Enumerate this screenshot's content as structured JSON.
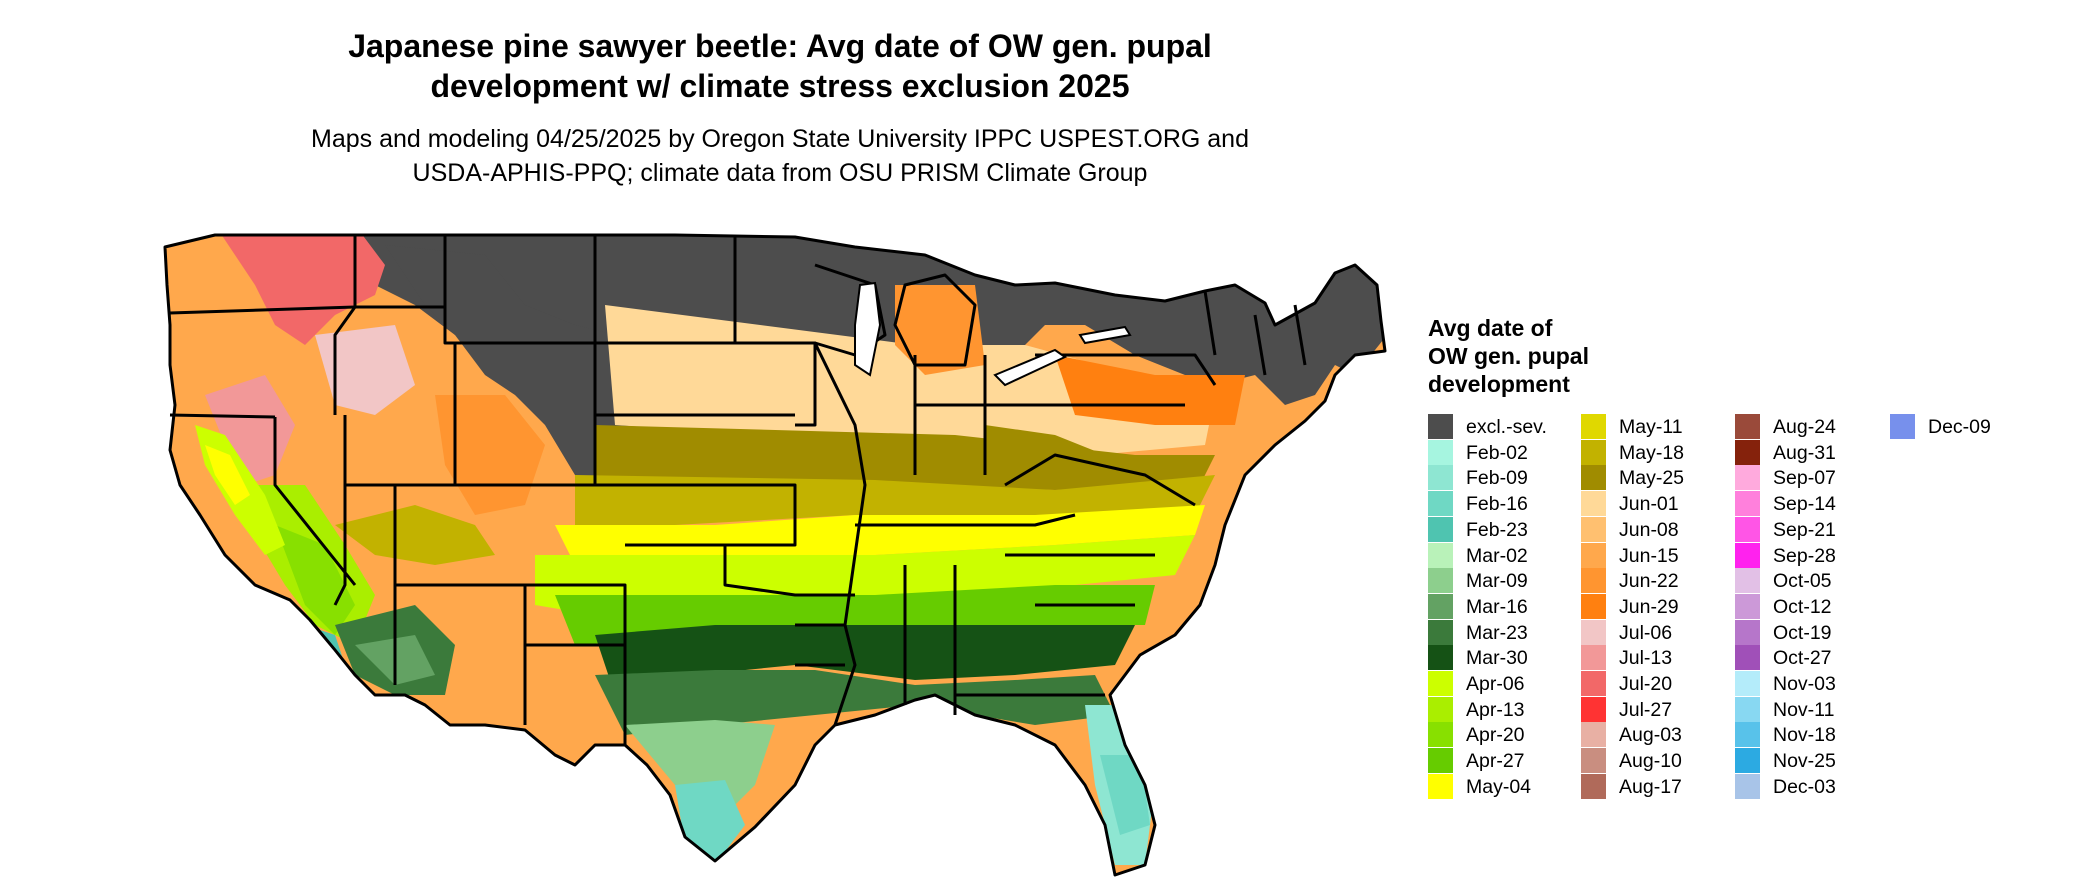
{
  "title": {
    "line1": "Japanese pine sawyer beetle: Avg date of OW gen. pupal",
    "line2": "development w/ climate stress exclusion 2025"
  },
  "subtitle": {
    "line1": "Maps and modeling 04/25/2025 by Oregon State University IPPC USPEST.ORG and",
    "line2": "USDA-APHIS-PPQ; climate data from OSU PRISM Climate Group"
  },
  "legend": {
    "title_lines": [
      "Avg date of",
      "OW gen. pupal",
      "development"
    ],
    "items": [
      {
        "label": "excl.-sev.",
        "color": "#4d4d4d"
      },
      {
        "label": "Feb-02",
        "color": "#a6f5e0"
      },
      {
        "label": "Feb-09",
        "color": "#8ee6d2"
      },
      {
        "label": "Feb-16",
        "color": "#6fd8c4"
      },
      {
        "label": "Feb-23",
        "color": "#4fc4b0"
      },
      {
        "label": "Mar-02",
        "color": "#b9f2b9"
      },
      {
        "label": "Mar-09",
        "color": "#8dcf8d"
      },
      {
        "label": "Mar-16",
        "color": "#63a263"
      },
      {
        "label": "Mar-23",
        "color": "#3b7a3b"
      },
      {
        "label": "Mar-30",
        "color": "#155215"
      },
      {
        "label": "Apr-06",
        "color": "#ccff00"
      },
      {
        "label": "Apr-13",
        "color": "#aaee00"
      },
      {
        "label": "Apr-20",
        "color": "#88e000"
      },
      {
        "label": "Apr-27",
        "color": "#66cc00"
      },
      {
        "label": "May-04",
        "color": "#ffff00"
      },
      {
        "label": "May-11",
        "color": "#e0d800"
      },
      {
        "label": "May-18",
        "color": "#c2b200"
      },
      {
        "label": "May-25",
        "color": "#a08c00"
      },
      {
        "label": "Jun-01",
        "color": "#ffd998"
      },
      {
        "label": "Jun-08",
        "color": "#ffc070"
      },
      {
        "label": "Jun-15",
        "color": "#ffa84c"
      },
      {
        "label": "Jun-22",
        "color": "#ff9530"
      },
      {
        "label": "Jun-29",
        "color": "#ff8010"
      },
      {
        "label": "Jul-06",
        "color": "#f2c6c6"
      },
      {
        "label": "Jul-13",
        "color": "#f29898"
      },
      {
        "label": "Jul-20",
        "color": "#f26868"
      },
      {
        "label": "Jul-27",
        "color": "#ff3333"
      },
      {
        "label": "Aug-03",
        "color": "#e8b0a4"
      },
      {
        "label": "Aug-10",
        "color": "#c98e80"
      },
      {
        "label": "Aug-17",
        "color": "#b06a5a"
      },
      {
        "label": "Aug-24",
        "color": "#9a4a3a"
      },
      {
        "label": "Aug-31",
        "color": "#85220c"
      },
      {
        "label": "Sep-07",
        "color": "#ffaadd"
      },
      {
        "label": "Sep-14",
        "color": "#ff80dc"
      },
      {
        "label": "Sep-21",
        "color": "#ff55e6"
      },
      {
        "label": "Sep-28",
        "color": "#ff22ee"
      },
      {
        "label": "Oct-05",
        "color": "#e2c0e6"
      },
      {
        "label": "Oct-12",
        "color": "#cc99d8"
      },
      {
        "label": "Oct-19",
        "color": "#b676ca"
      },
      {
        "label": "Oct-27",
        "color": "#a050b8"
      },
      {
        "label": "Nov-03",
        "color": "#b4ecfa"
      },
      {
        "label": "Nov-11",
        "color": "#88d8f2"
      },
      {
        "label": "Nov-18",
        "color": "#58c2ea"
      },
      {
        "label": "Nov-25",
        "color": "#2caae2"
      },
      {
        "label": "Dec-03",
        "color": "#a8c4e8"
      },
      {
        "label": "Dec-09",
        "color": "#7790ec"
      }
    ]
  },
  "map_colors": {
    "state_border": "#000000",
    "excluded": "#4d4d4d"
  }
}
